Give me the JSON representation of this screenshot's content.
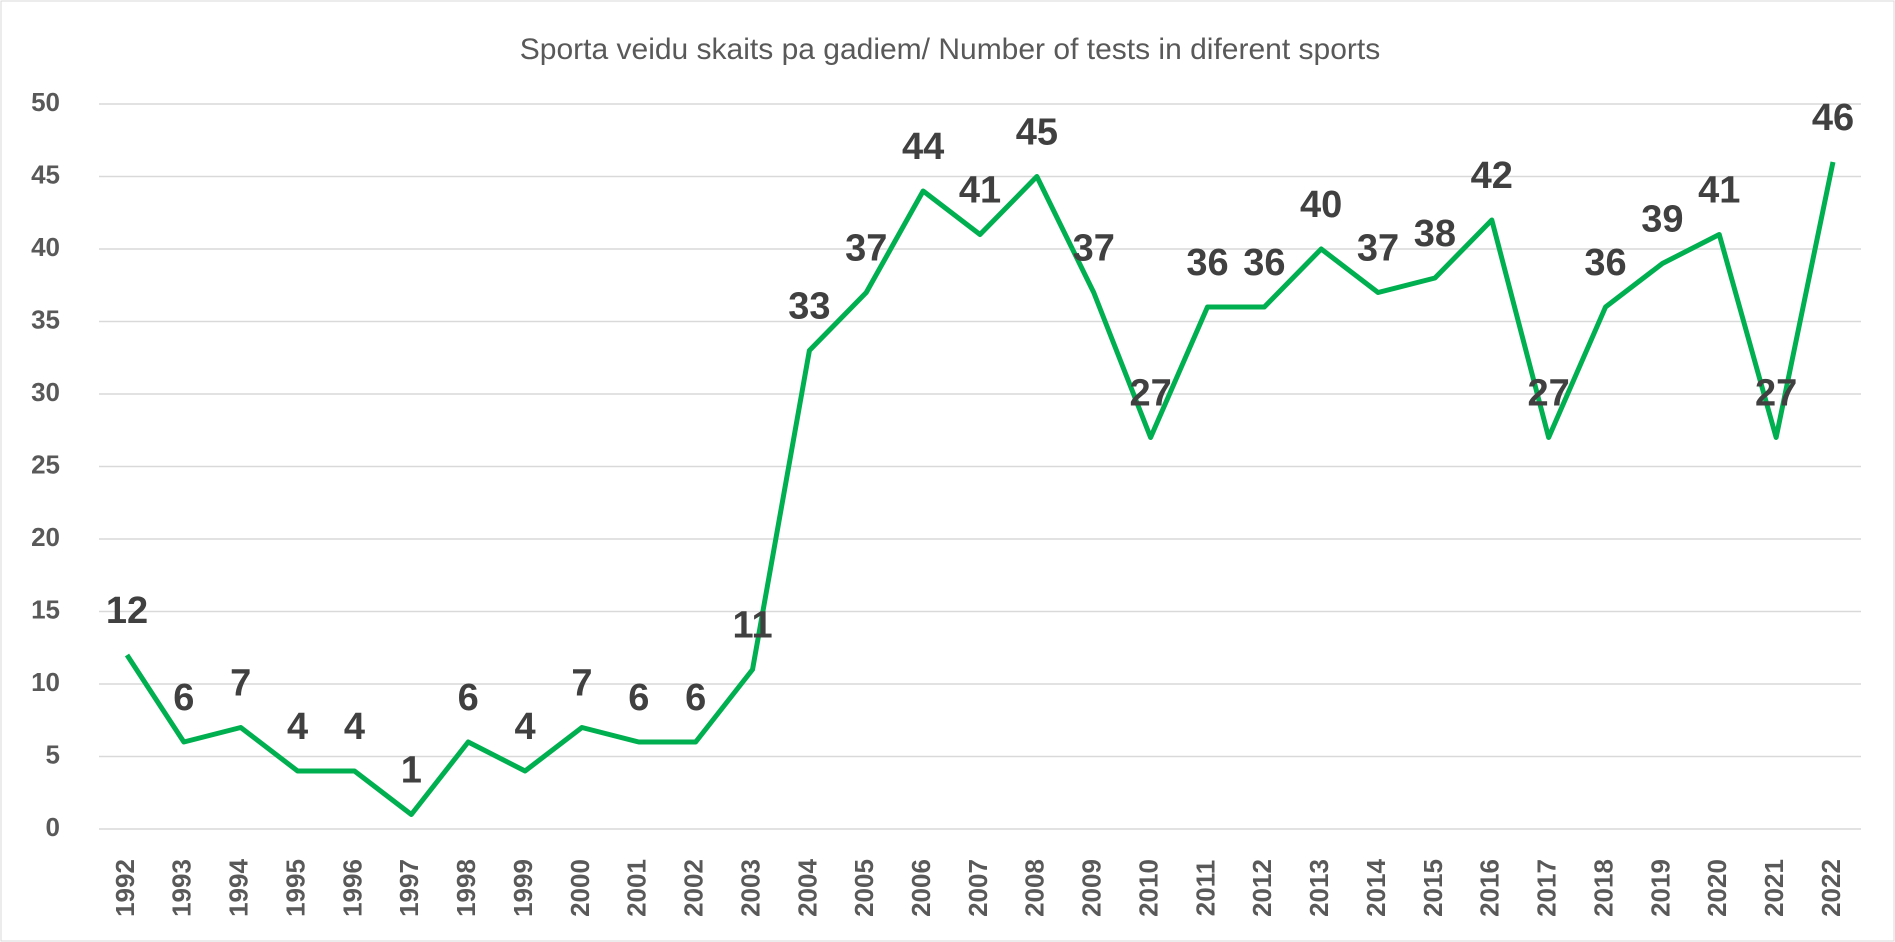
{
  "chart_data": {
    "type": "line",
    "title": "Sporta veidu skaits pa gadiem/ Number of tests in diferent sports",
    "categories": [
      "1992",
      "1993",
      "1994",
      "1995",
      "1996",
      "1997",
      "1998",
      "1999",
      "2000",
      "2001",
      "2002",
      "2003",
      "2004",
      "2005",
      "2006",
      "2007",
      "2008",
      "2009",
      "2010",
      "2011",
      "2012",
      "2013",
      "2014",
      "2015",
      "2016",
      "2017",
      "2018",
      "2019",
      "2020",
      "2021",
      "2022"
    ],
    "series": [
      {
        "color": "#00b050",
        "values": [
          12,
          6,
          7,
          4,
          4,
          1,
          6,
          4,
          7,
          6,
          6,
          11,
          33,
          37,
          44,
          41,
          45,
          37,
          27,
          36,
          36,
          40,
          37,
          38,
          42,
          27,
          36,
          39,
          41,
          27,
          46
        ]
      }
    ],
    "ylim": [
      0,
      50
    ],
    "yticks": [
      0,
      5,
      10,
      15,
      20,
      25,
      30,
      35,
      40,
      45,
      50
    ],
    "grid": true
  }
}
